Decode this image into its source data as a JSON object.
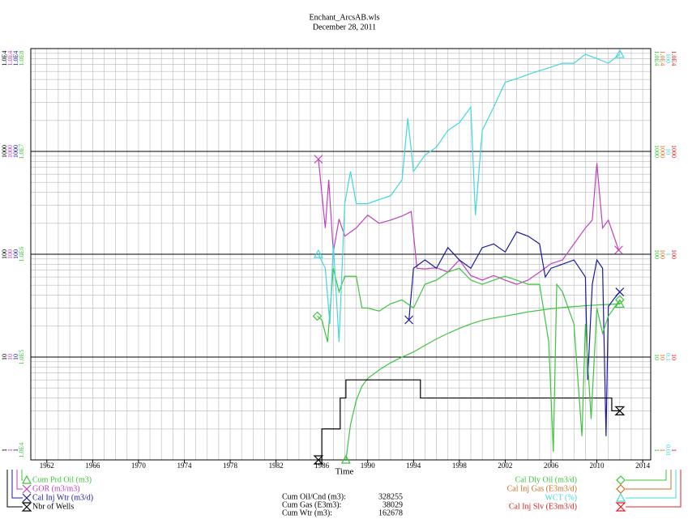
{
  "chart_data": {
    "type": "line",
    "title": "Enchant_ArcsAB.wls",
    "subtitle": "December 28, 2011",
    "x_label": "Time",
    "log_scale": true,
    "grid": true,
    "xlim": [
      1960.6,
      2014.7
    ],
    "xticks": [
      1962,
      1966,
      1970,
      1974,
      1978,
      1982,
      1986,
      1990,
      1994,
      1998,
      2002,
      2006,
      2010,
      2014
    ],
    "axes": [
      {
        "side": "left",
        "color": "#000000",
        "ylim": [
          1,
          10000
        ],
        "yticks": [
          1,
          10,
          100,
          1000,
          {
            "value": 10000,
            "label": "1.0E4"
          }
        ]
      },
      {
        "side": "left",
        "color": "#c040c0",
        "ylim": [
          1,
          10000
        ],
        "yticks": [
          1,
          10,
          100,
          1000,
          {
            "value": 10000,
            "label": "1.0E4"
          }
        ]
      },
      {
        "side": "left",
        "color": "#1a1aa0",
        "ylim": [
          1,
          10000
        ],
        "yticks": [
          1,
          10,
          100,
          1000,
          {
            "value": 10000,
            "label": "1.0E4"
          }
        ]
      },
      {
        "side": "left",
        "color": "#3ec43e",
        "ylim": [
          10000,
          100000000
        ],
        "yticks": [
          {
            "value": 10000,
            "label": "1.0E4"
          },
          {
            "value": 100000,
            "label": "1.0E5"
          },
          {
            "value": 1000000,
            "label": "1.0E6"
          },
          {
            "value": 10000000,
            "label": "1.0E7"
          },
          {
            "value": 100000000,
            "label": "1.0E8"
          }
        ]
      },
      {
        "side": "right",
        "color": "#3ec43e",
        "ylim": [
          1,
          10000
        ],
        "yticks": [
          1,
          10,
          100,
          1000,
          {
            "value": 10000,
            "label": "1.0E4"
          }
        ]
      },
      {
        "side": "right",
        "color": "#d07020",
        "ylim": [
          1,
          10000
        ],
        "yticks": [
          1,
          10,
          100,
          1000,
          {
            "value": 10000,
            "label": "1.0E4"
          }
        ]
      },
      {
        "side": "right",
        "color": "#40d8e0",
        "ylim": [
          0.01,
          100
        ],
        "yticks": [
          0.01,
          0.1,
          1,
          10,
          100
        ]
      },
      {
        "side": "right",
        "color": "#e02020",
        "ylim": [
          1,
          10000
        ],
        "yticks": [
          1,
          10,
          100,
          1000,
          {
            "value": 10000,
            "label": "1.0E4"
          }
        ]
      }
    ],
    "series": [
      {
        "name": "Cum Prd Oil (m3)",
        "color": "#3ec43e",
        "axis": 3,
        "marker": "triangle",
        "x": [
          1988.1,
          1988.5,
          1989,
          1989.5,
          1990,
          1991,
          1992,
          1993,
          1994,
          1995,
          1996,
          1997,
          1998,
          1999,
          2000,
          2001,
          2002,
          2003,
          2004,
          2005,
          2006,
          2007,
          2008,
          2009,
          2010,
          2011,
          2012
        ],
        "values": [
          10000,
          22000,
          38000,
          52000,
          62000,
          75000,
          88000,
          100000,
          112000,
          130000,
          150000,
          170000,
          190000,
          210000,
          228000,
          240000,
          250000,
          262000,
          275000,
          285000,
          295000,
          303000,
          310000,
          316000,
          321000,
          325000,
          328255
        ]
      },
      {
        "name": "GOR (m3/m3)",
        "color": "#c040c0",
        "axis": 1,
        "marker": "x",
        "x": [
          1985.7,
          1986.3,
          1986.6,
          1987,
          1987.5,
          1988,
          1989,
          1990,
          1991,
          1992,
          1993,
          1993.8,
          1994.3,
          1995,
          1996,
          1997,
          1998,
          1999,
          2000,
          2001,
          2002,
          2003,
          2004,
          2005,
          2006,
          2007,
          2008,
          2009,
          2009.6,
          2010,
          2010.5,
          2011,
          2011.9
        ],
        "values": [
          840,
          180,
          530,
          105,
          220,
          150,
          180,
          240,
          200,
          215,
          235,
          260,
          73,
          72,
          74,
          67,
          88,
          62,
          56,
          62,
          56,
          51,
          56,
          67,
          81,
          88,
          126,
          180,
          215,
          770,
          180,
          215,
          110
        ]
      },
      {
        "name": "Cal Inj Wtr (m3/d)",
        "color": "#1a1aa0",
        "axis": 2,
        "marker": "x",
        "x": [
          1993.6,
          1994,
          1995,
          1996,
          1997,
          1998,
          1999,
          2000,
          2001,
          2002,
          2003,
          2004,
          2005,
          2005.5,
          2006,
          2007,
          2008,
          2009,
          2009.2,
          2009.6,
          2010,
          2010.5,
          2010.8,
          2011,
          2011.5,
          2012
        ],
        "values": [
          23,
          73,
          88,
          73,
          116,
          88,
          73,
          116,
          126,
          105,
          165,
          150,
          126,
          60,
          73,
          80,
          88,
          60,
          6,
          51,
          88,
          73,
          1.7,
          31,
          37,
          43
        ]
      },
      {
        "name": "Nbr of Wells",
        "color": "#000000",
        "axis": 0,
        "marker": "hourglass",
        "step": true,
        "x": [
          1985.7,
          1986,
          1987.6,
          1988.1,
          1994.6,
          2011.3,
          2012
        ],
        "values": [
          1,
          2,
          4,
          6,
          4,
          3,
          3
        ]
      },
      {
        "name": "Cal Dly Oil (m3/d)",
        "color": "#3ec43e",
        "axis": 4,
        "marker": "diamond",
        "x": [
          1985.6,
          1986,
          1986.5,
          1987,
          1987.5,
          1988,
          1989,
          1989.5,
          1990,
          1991,
          1992,
          1993,
          1994,
          1995,
          1996,
          1997,
          1998,
          1999,
          2000,
          2001,
          2002,
          2003,
          2004,
          2005,
          2005.8,
          2006.2,
          2006.5,
          2007,
          2008,
          2008.7,
          2009,
          2009.5,
          2010,
          2010.5,
          2011,
          2012
        ],
        "values": [
          25,
          23,
          14,
          73,
          43,
          61,
          61,
          30,
          30,
          28,
          33,
          36,
          30,
          51,
          56,
          67,
          73,
          56,
          51,
          56,
          61,
          56,
          51,
          51,
          14,
          1.2,
          51,
          43,
          21,
          1.7,
          21,
          2.5,
          30,
          17,
          25,
          36
        ]
      },
      {
        "name": "Cal Inj Gas (E3m3/d)",
        "color": "#d07020",
        "axis": 5,
        "marker": "diamond",
        "x": [],
        "values": []
      },
      {
        "name": "WCT (%)",
        "color": "#40d8e0",
        "axis": 6,
        "marker": "triangle",
        "x": [
          1985.7,
          1986.3,
          1986.7,
          1987,
          1987.5,
          1988,
          1988.5,
          1989,
          1990,
          1991,
          1992,
          1993,
          1993.5,
          1994,
          1995,
          1996,
          1997,
          1998,
          1999,
          1999.4,
          2000,
          2001,
          2002,
          2003,
          2004,
          2005,
          2006,
          2007,
          2008,
          2009,
          2010,
          2011,
          2012
        ],
        "values": [
          1.0,
          0.73,
          0.21,
          1.26,
          0.14,
          3.1,
          6.4,
          3.1,
          3.1,
          3.4,
          3.7,
          5.3,
          21,
          6.4,
          9.2,
          11,
          16,
          19,
          27,
          2.4,
          16,
          27,
          47,
          51,
          56,
          61,
          66,
          72,
          72,
          88,
          80,
          72,
          88
        ]
      },
      {
        "name": "Cal Inj Slv (E3m3/d)",
        "color": "#e02020",
        "axis": 7,
        "marker": "hourglass",
        "x": [],
        "values": []
      }
    ],
    "summary": [
      {
        "label": "Cum Oil/Cnd (m3):",
        "value": 328255
      },
      {
        "label": "Cum Gas (E3m3):",
        "value": 38029
      },
      {
        "label": "Cum Wtr (m3):",
        "value": 162678
      }
    ]
  }
}
